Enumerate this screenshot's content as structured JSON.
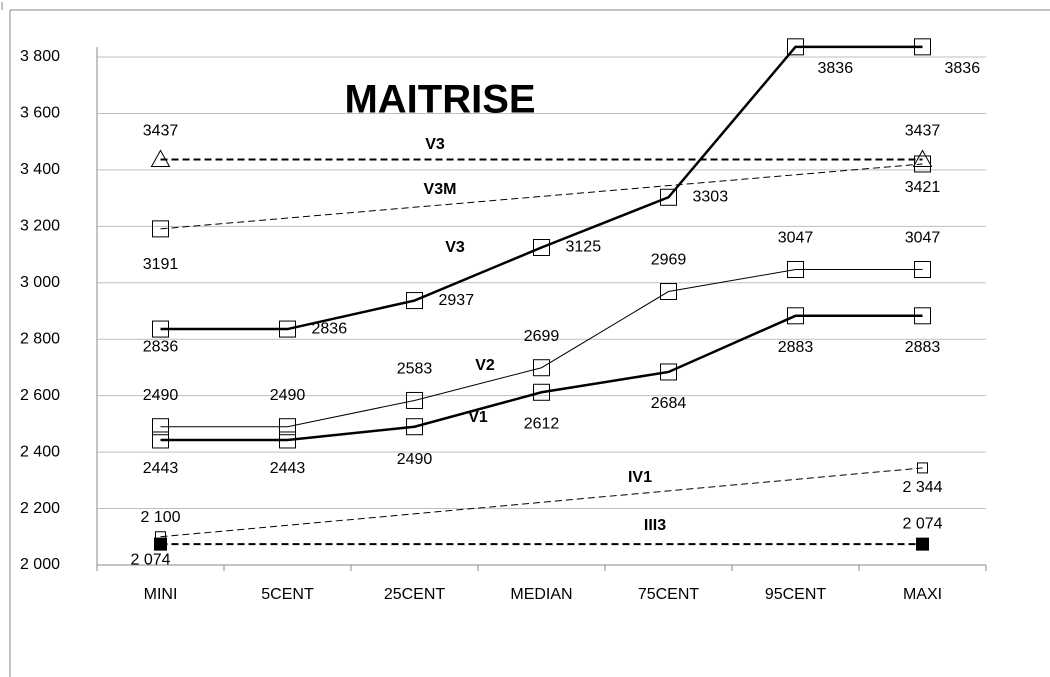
{
  "chart_data": {
    "type": "line",
    "title": "MAITRISE",
    "categories": [
      "MINI",
      "5CENT",
      "25CENT",
      "MEDIAN",
      "75CENT",
      "95CENT",
      "MAXI"
    ],
    "ylim": [
      2000,
      3800
    ],
    "yticks": [
      {
        "value": 2000,
        "label": "2 000"
      },
      {
        "value": 2200,
        "label": "2 200"
      },
      {
        "value": 2400,
        "label": "2 400"
      },
      {
        "value": 2600,
        "label": "2 600"
      },
      {
        "value": 2800,
        "label": "2 800"
      },
      {
        "value": 3000,
        "label": "3 000"
      },
      {
        "value": 3200,
        "label": "3 200"
      },
      {
        "value": 3400,
        "label": "3 400"
      },
      {
        "value": 3600,
        "label": "3 600"
      },
      {
        "value": 3800,
        "label": "3 800"
      }
    ],
    "grid": true,
    "connect_gaps": true,
    "series": [
      {
        "name": "V3",
        "color": "#000000",
        "values": [
          3437,
          null,
          null,
          null,
          null,
          null,
          3437
        ],
        "line_width": 2,
        "dash": true,
        "marker": "triangle",
        "marker_fill": "none"
      },
      {
        "name": "V3M",
        "color": "#000000",
        "values": [
          3191,
          null,
          null,
          null,
          null,
          null,
          3421
        ],
        "line_width": 1,
        "dash": true,
        "marker": "square",
        "marker_fill": "none"
      },
      {
        "name": "V3",
        "color": "#000000",
        "values": [
          2836,
          2836,
          2937,
          3125,
          3303,
          3836,
          3836
        ],
        "line_width": 2.5,
        "dash": false,
        "marker": "square",
        "marker_fill": "none"
      },
      {
        "name": "V2",
        "color": "#000000",
        "values": [
          2490,
          2490,
          2583,
          2699,
          2969,
          3047,
          3047
        ],
        "line_width": 1,
        "dash": false,
        "marker": "square",
        "marker_fill": "none"
      },
      {
        "name": "V1",
        "color": "#000000",
        "values": [
          2443,
          2443,
          2490,
          2612,
          2684,
          2883,
          2883
        ],
        "line_width": 2.5,
        "dash": false,
        "marker": "square",
        "marker_fill": "none"
      },
      {
        "name": "IV1",
        "color": "#000000",
        "values": [
          2100,
          null,
          null,
          null,
          null,
          null,
          2344
        ],
        "value_labels": [
          "2 100",
          null,
          null,
          null,
          null,
          null,
          "2 344"
        ],
        "line_width": 1,
        "dash": true,
        "marker": "small-square",
        "marker_fill": "none"
      },
      {
        "name": "III3",
        "color": "#000000",
        "values": [
          2074,
          null,
          null,
          null,
          null,
          null,
          2074
        ],
        "value_labels": [
          "2 074",
          null,
          null,
          null,
          null,
          null,
          "2 074"
        ],
        "line_width": 2,
        "dash": true,
        "marker": "square-filled",
        "marker_fill": "#000000"
      }
    ]
  }
}
